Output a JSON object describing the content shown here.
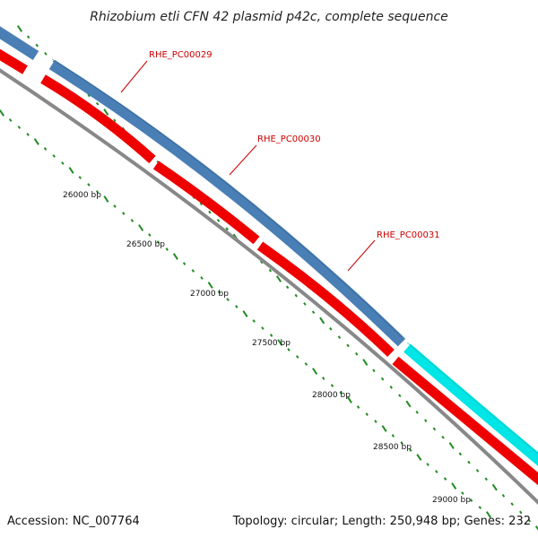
{
  "title": "Rhizobium etli CFN 42 plasmid p42c, complete sequence",
  "footer": {
    "accession": "Accession: NC_007764",
    "summary": "Topology: circular; Length: 250,948 bp; Genes: 232"
  },
  "colors": {
    "forward_cds": "#4a7fb5",
    "forward_cds_next": "#00e5e5",
    "reverse_cds": "#ee0000",
    "backbone": "#888888",
    "ticks": "#228b22",
    "label": "#cc0000"
  },
  "ruler": [
    "26000 bp",
    "26500 bp",
    "27000 bp",
    "27500 bp",
    "28000 bp",
    "28500 bp",
    "29000 bp"
  ],
  "genes": [
    {
      "label": "RHE_PC00029"
    },
    {
      "label": "RHE_PC00030"
    },
    {
      "label": "RHE_PC00031"
    }
  ]
}
